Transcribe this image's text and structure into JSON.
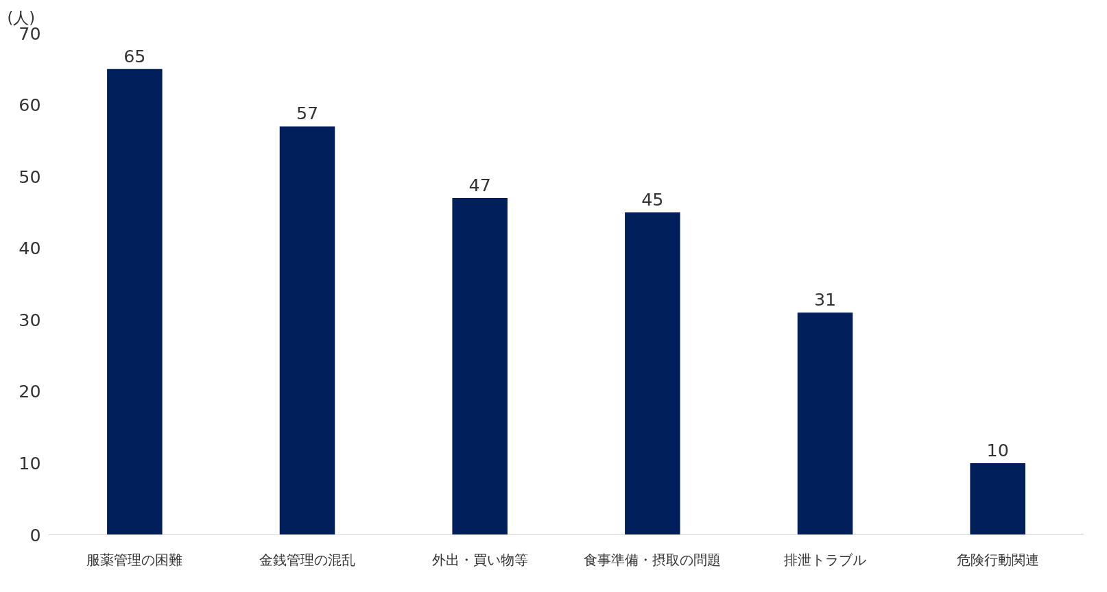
{
  "chart_data": {
    "type": "bar",
    "ylabel": "(人)",
    "categories": [
      "服薬管理の困難",
      "金銭管理の混乱",
      "外出・買い物等",
      "食事準備・摂取の問題",
      "排泄トラブル",
      "危険行動関連"
    ],
    "values": [
      65,
      57,
      47,
      45,
      31,
      10
    ],
    "color": "#001f5b",
    "ylim": [
      0,
      70
    ],
    "yticks": [
      0,
      10,
      20,
      30,
      40,
      50,
      60,
      70
    ],
    "grid": false,
    "data_labels": true
  }
}
